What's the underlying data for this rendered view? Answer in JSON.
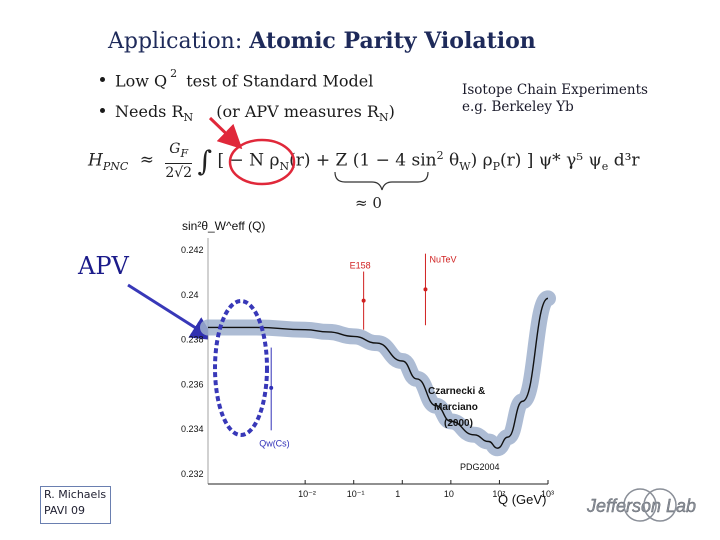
{
  "slide": {
    "title_prefix": "Application:",
    "title_main": "Atomic  Parity  Violation",
    "bullets": [
      {
        "text": "Low Q",
        "sup": "2",
        "rest": " test of Standard Model"
      },
      {
        "text": "Needs R",
        "sub": "N",
        "rest": "(or APV measures R",
        "sub2": "N",
        "rest2": ")"
      }
    ],
    "isotope_lines": [
      "Isotope Chain Experiments",
      "e.g. Berkeley Yb"
    ],
    "formula": {
      "lhs": "H",
      "lhs_sub": "PNC",
      "prefactor_num": "G",
      "prefactor_num_sub": "F",
      "prefactor_den": "2√2",
      "integral": "∫",
      "term1": "[ − N ρ",
      "term1_sub": "N",
      "term1_arg": "(r)",
      "term2": " + Z (1 − 4 sin",
      "term2_sup": "2",
      "term2_theta": " θ",
      "term2_sub": "W",
      "term2_rest": ") ρ",
      "term2_rho_sub": "P",
      "term2_arg": "(r) ] ψ",
      "tail": "* γ⁵ ψ",
      "tail_sub": "e",
      "dr": " d³r"
    },
    "approx_zero": "≈ 0",
    "apv_label": "APV",
    "author_lines": [
      "R. Michaels",
      "PAVI 09"
    ],
    "logo_text": "Jefferson Lab"
  },
  "chart_data": {
    "type": "line",
    "title": "",
    "ylabel": "sin²θ_W^eff (Q)",
    "xlabel": "Q (GeV)",
    "x_scale": "log",
    "xlim": [
      0.0001,
      1000
    ],
    "ylim": [
      0.2315,
      0.2425
    ],
    "y_ticks": [
      "0.242",
      "0.24",
      "0.238",
      "0.236",
      "0.234",
      "0.232"
    ],
    "x_ticks": [
      "10⁻²",
      "10⁻¹",
      "1",
      "10",
      "10²",
      "10³"
    ],
    "series": [
      {
        "name": "Czarnecki & Marciano (2000)",
        "x": [
          0.0001,
          0.001,
          0.01,
          0.03,
          0.1,
          0.3,
          1,
          2,
          5,
          10,
          30,
          60,
          91.2,
          150,
          300,
          1000
        ],
        "y": [
          0.2385,
          0.2385,
          0.2384,
          0.2383,
          0.2381,
          0.2378,
          0.237,
          0.2362,
          0.235,
          0.2343,
          0.2337,
          0.2334,
          0.2331,
          0.2336,
          0.2352,
          0.2398
        ]
      }
    ],
    "points": [
      {
        "label": "Qw(Cs)",
        "x": 0.002,
        "y": 0.2358,
        "err_low": 0.2339,
        "err_high": 0.2376
      },
      {
        "label": "E158",
        "x": 0.16,
        "y": 0.2397,
        "err_low": 0.2384,
        "err_high": 0.241
      },
      {
        "label": "NuTeV",
        "x": 3.0,
        "y": 0.2402,
        "err_low": 0.2386,
        "err_high": 0.2418
      }
    ],
    "annotations": [
      "Czarnecki &",
      "Marciano",
      "(2000)",
      "PDG2004"
    ]
  }
}
